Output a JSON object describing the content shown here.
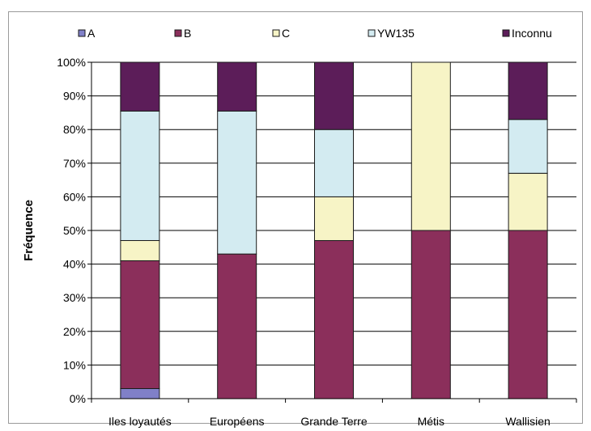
{
  "chart_data": {
    "type": "bar",
    "stacked": true,
    "categories": [
      "Iles loyautés",
      "Européens",
      "Grande Terre",
      "Métis",
      "Wallisien"
    ],
    "series": [
      {
        "name": "A",
        "color": "#8080c8",
        "values": [
          3,
          0,
          0,
          0,
          0
        ]
      },
      {
        "name": "B",
        "color": "#8b2f5b",
        "values": [
          38,
          43,
          47,
          50,
          50
        ]
      },
      {
        "name": "C",
        "color": "#f7f4c6",
        "values": [
          6,
          0,
          13,
          50,
          17
        ]
      },
      {
        "name": "YW135",
        "color": "#d3ebf1",
        "values": [
          38.5,
          42.5,
          20,
          0,
          16
        ]
      },
      {
        "name": "Inconnu",
        "color": "#5c1d59",
        "values": [
          14.5,
          14.5,
          20,
          0,
          17
        ]
      }
    ],
    "ylabel": "Fréquence",
    "xlabel": "",
    "ylim": [
      0,
      100
    ],
    "yticks": [
      "0%",
      "10%",
      "20%",
      "30%",
      "40%",
      "50%",
      "60%",
      "70%",
      "80%",
      "90%",
      "100%"
    ],
    "grid": true,
    "legend_position": "top"
  }
}
